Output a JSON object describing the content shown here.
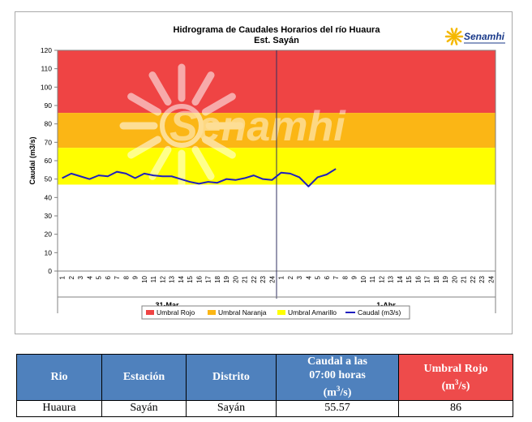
{
  "chart_data": {
    "type": "line",
    "title": "Hidrograma de Caudales Horarios del río Huaura",
    "subtitle": "Est. Sayán",
    "ylabel": "Caudal  (m3/s)",
    "ylim": [
      0,
      120
    ],
    "yticks": [
      "0",
      "10",
      "20",
      "30",
      "40",
      "50",
      "60",
      "70",
      "80",
      "90",
      "100",
      "110",
      "120"
    ],
    "days": [
      "31-Mar",
      "1-Abr"
    ],
    "hour_labels": [
      "1",
      "2",
      "3",
      "4",
      "5",
      "6",
      "7",
      "8",
      "9",
      "10",
      "11",
      "12",
      "13",
      "14",
      "15",
      "16",
      "17",
      "18",
      "19",
      "20",
      "21",
      "22",
      "23",
      "24"
    ],
    "bands": [
      {
        "name": "Umbral Rojo",
        "from": 86,
        "to": 120,
        "color": "#ef4444"
      },
      {
        "name": "Umbral Naranja",
        "from": 67,
        "to": 86,
        "color": "#fbb615"
      },
      {
        "name": "Umbral Amarillo",
        "from": 47,
        "to": 67,
        "color": "#ffff00"
      }
    ],
    "series": [
      {
        "name": "Caudal (m3/s)",
        "color": "#1f1fbf",
        "values": [
          50.5,
          53.0,
          51.5,
          50.0,
          52.0,
          51.5,
          54.0,
          53.0,
          50.5,
          53.0,
          52.0,
          51.5,
          51.5,
          50.0,
          48.5,
          47.5,
          48.5,
          48.0,
          50.0,
          49.5,
          50.5,
          52.0,
          50.0,
          49.5,
          53.5,
          53.0,
          51.0,
          46.0,
          51.0,
          52.5,
          55.57
        ]
      }
    ],
    "legend": [
      "Umbral Rojo",
      "Umbral Naranja",
      "Umbral Amarillo",
      "Caudal (m3/s)"
    ],
    "legend_position": "bottom",
    "grid": false
  },
  "logo": {
    "text": "Senamhi"
  },
  "watermark": {
    "text": "Senamhi"
  },
  "colors": {
    "red": "#ef4444",
    "orange": "#fbb615",
    "yellow": "#ffff00",
    "line": "#1f1fbf",
    "header_blue": "#4f81bd",
    "header_red": "#ee4b4b"
  },
  "table": {
    "headers": {
      "rio": "Rio",
      "estacion": "Estación",
      "distrito": "Distrito",
      "caudal_line1": "Caudal a las",
      "caudal_line2": "07:00 horas",
      "caudal_unit": "(m3/s)",
      "umbral_line1": "Umbral Rojo",
      "umbral_unit": "(m3/s)"
    },
    "row": {
      "rio": "Huaura",
      "estacion": "Sayán",
      "distrito": "Sayán",
      "caudal": "55.57",
      "umbral": "86"
    }
  }
}
